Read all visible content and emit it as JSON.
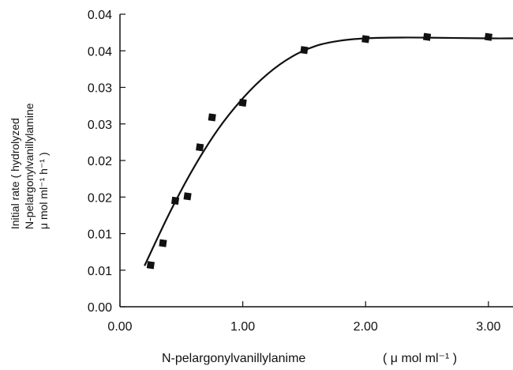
{
  "chart_data": {
    "type": "scatter",
    "title": "",
    "xlabel": "N-pelargonylvanillylanime",
    "xunit": "( μ mol ml⁻¹ )",
    "ylabel_lines": [
      "Initial rate ( hydrolyzed",
      "N-pelargonylvanillylamine",
      "μ mol ml⁻¹ h⁻¹ )"
    ],
    "xlim": [
      0,
      3.2
    ],
    "ylim": [
      0,
      0.04
    ],
    "x_ticks": [
      0.0,
      1.0,
      2.0,
      3.0
    ],
    "x_tick_labels": [
      "0.00",
      "1.00",
      "2.00",
      "3.00"
    ],
    "y_ticks": [
      0,
      0.005,
      0.01,
      0.015,
      0.02,
      0.025,
      0.03,
      0.035,
      0.04
    ],
    "y_tick_labels": [
      "0.00",
      "0.01",
      "0.01",
      "0.02",
      "0.02",
      "0.03",
      "0.03",
      "0.04",
      "0.04"
    ],
    "grid": false,
    "series": [
      {
        "marker": "square",
        "x": [
          0.25,
          0.35,
          0.45,
          0.55,
          0.65,
          0.75,
          1.0,
          1.5,
          2.0,
          2.5,
          3.0
        ],
        "y": [
          0.0057,
          0.0087,
          0.0145,
          0.0151,
          0.0218,
          0.0259,
          0.0279,
          0.0351,
          0.0366,
          0.0369,
          0.0369
        ]
      }
    ],
    "fit_curve": {
      "x": [
        0.2,
        0.4,
        0.6,
        0.8,
        1.0,
        1.2,
        1.4,
        1.6,
        1.8,
        2.0,
        2.2,
        2.5,
        3.0,
        3.2
      ],
      "y": [
        0.0056,
        0.0127,
        0.019,
        0.0243,
        0.0285,
        0.0318,
        0.0342,
        0.0357,
        0.0364,
        0.0367,
        0.0368,
        0.0368,
        0.0367,
        0.0367
      ]
    }
  }
}
